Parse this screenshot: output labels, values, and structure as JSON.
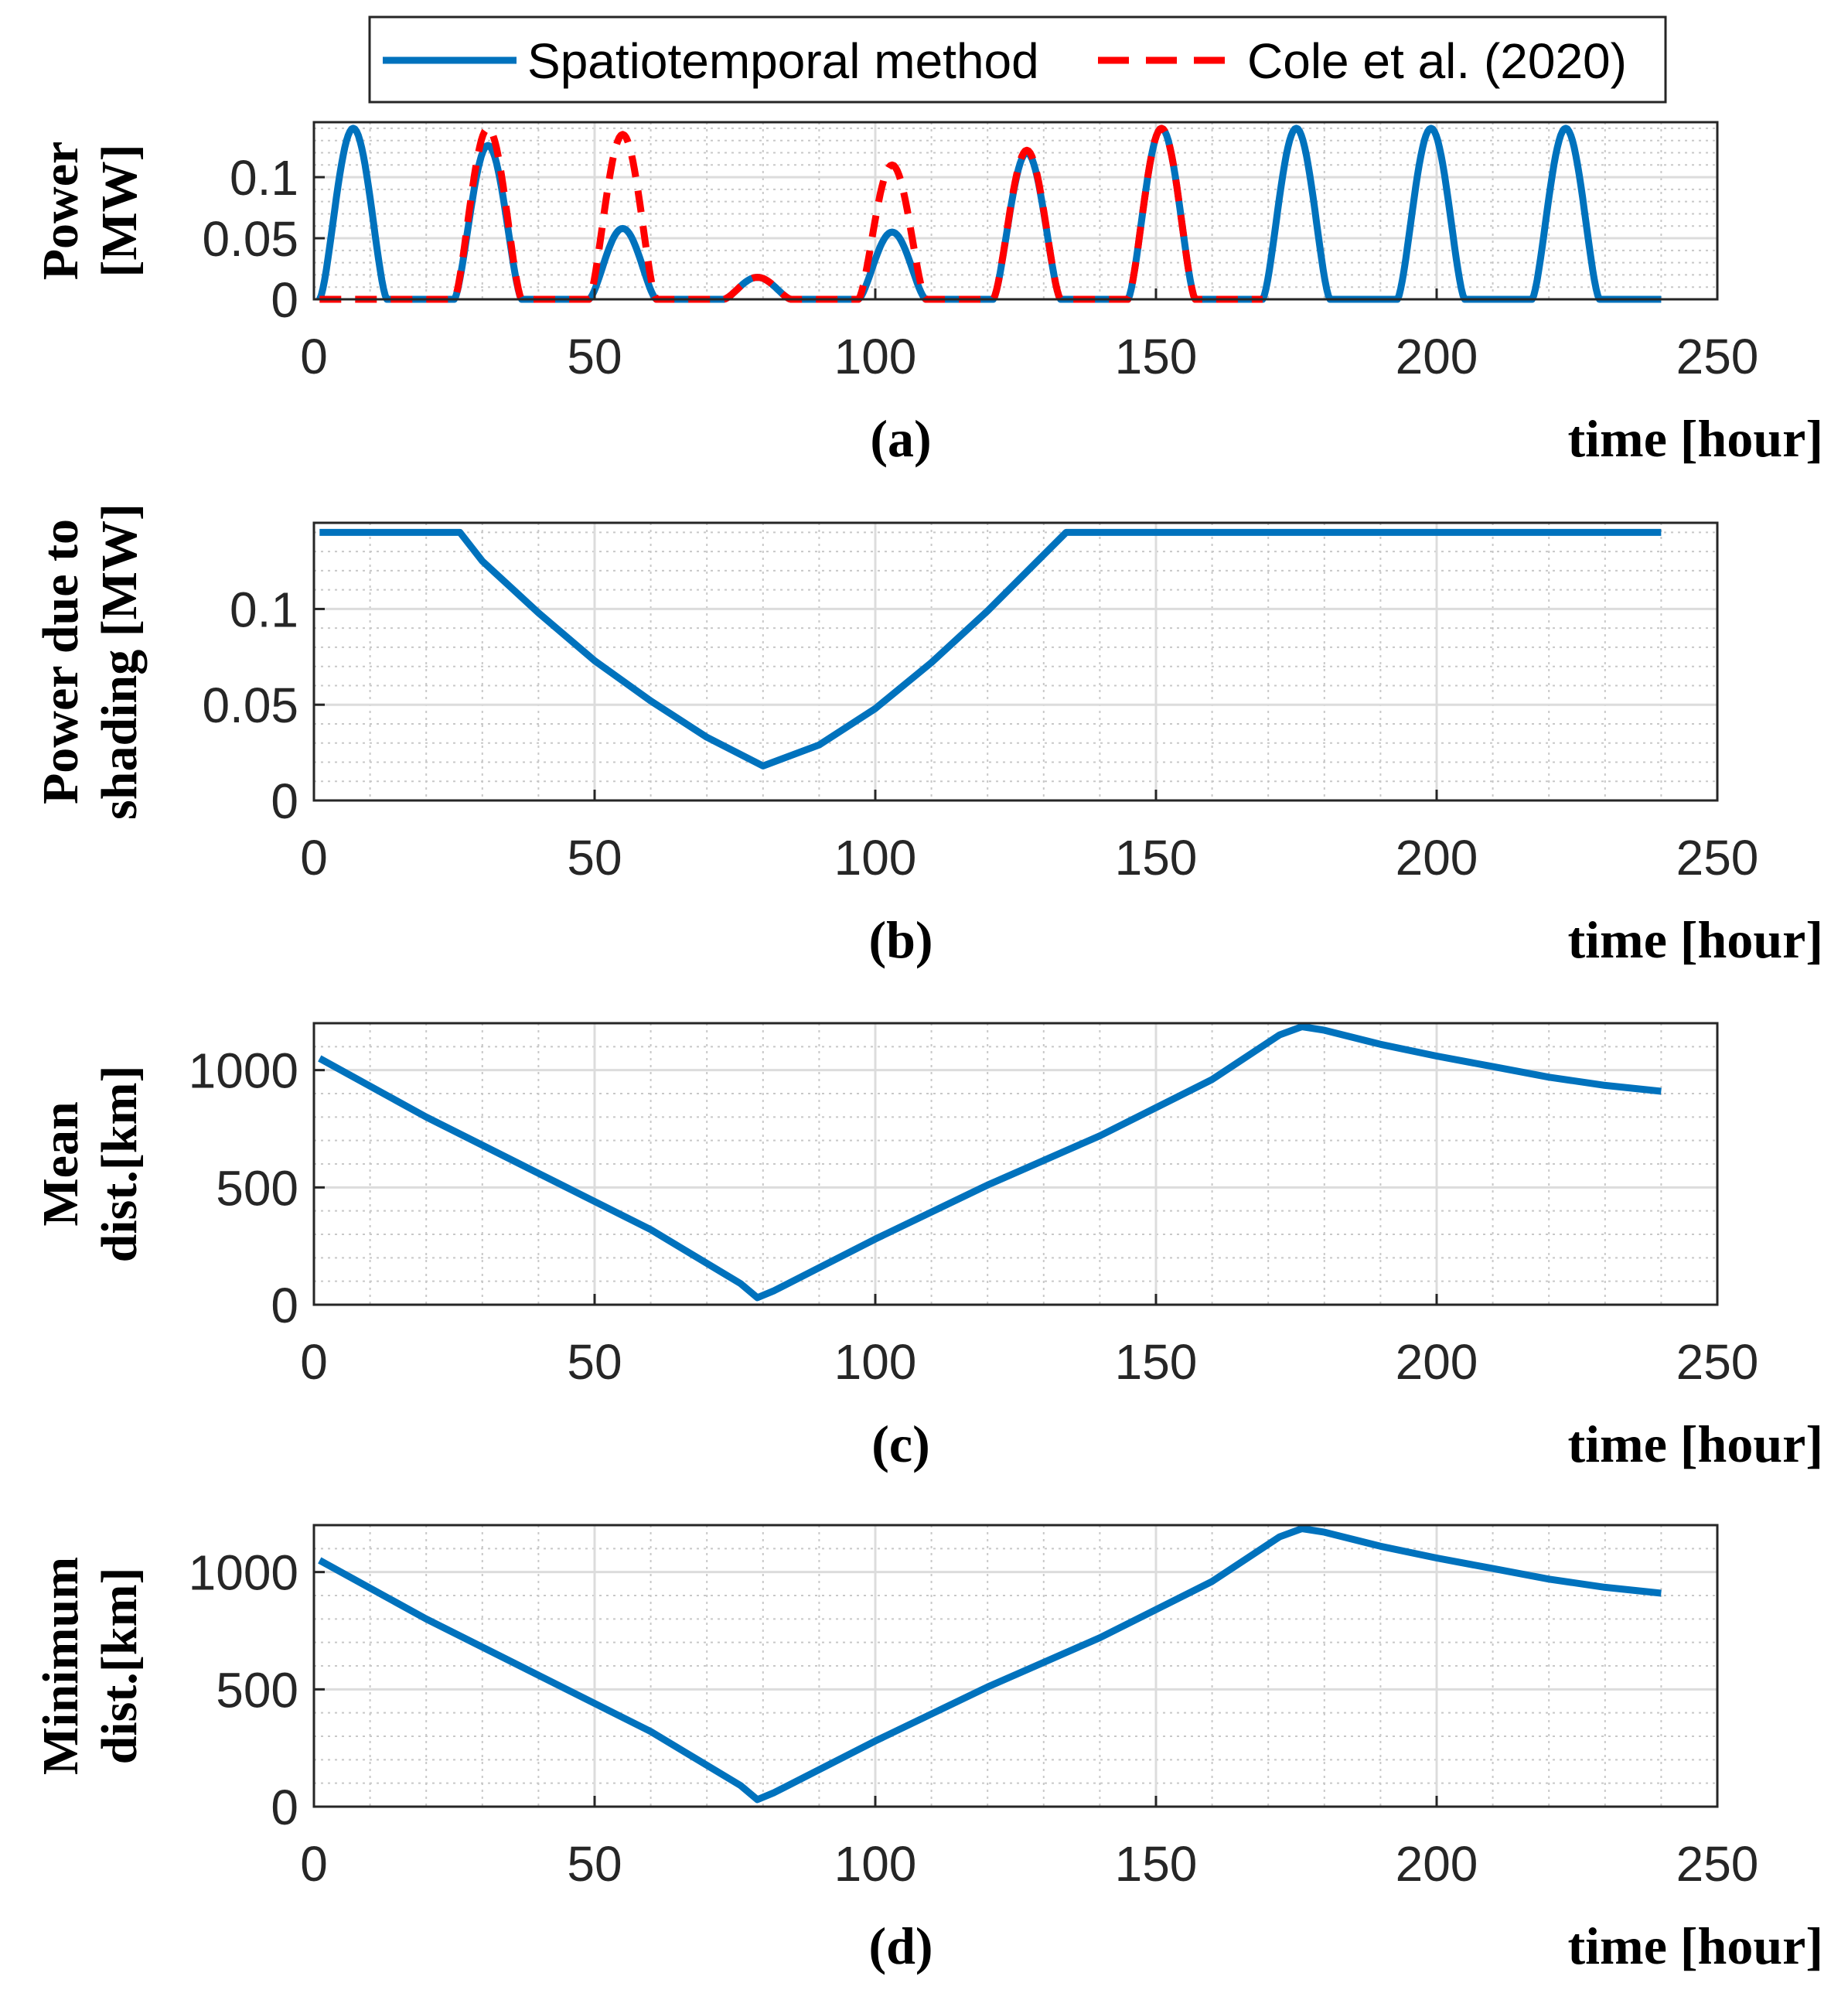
{
  "colors": {
    "spatio": "#0072BD",
    "cole": "#FF0000",
    "grid_major": "#dcdcdc",
    "grid_minor": "#c8c8c8",
    "axis": "#262626"
  },
  "legend": {
    "items": [
      {
        "label": "Spatiotemporal method",
        "style": "solid",
        "color": "#0072BD"
      },
      {
        "label": "Cole et al. (2020)",
        "style": "dashed",
        "color": "#FF0000"
      }
    ]
  },
  "chart_data": [
    {
      "id": "a",
      "type": "line",
      "caption": "(a)",
      "xlabel": "time [hour]",
      "ylabel_lines": [
        "Power",
        "[MW]"
      ],
      "xlim": [
        0,
        250
      ],
      "ylim": [
        0,
        0.145
      ],
      "xticks": [
        0,
        50,
        100,
        150,
        200,
        250
      ],
      "xtick_labels": [
        "0",
        "50",
        "100",
        "150",
        "200",
        "250"
      ],
      "yticks": [
        0,
        0.05,
        0.1
      ],
      "ytick_labels": [
        "0",
        "0.05",
        "0.1"
      ],
      "series": [
        {
          "name": "Spatiotemporal method",
          "style": "solid",
          "kind": "pulses",
          "x_start": 1,
          "x_end": 240,
          "period": 24,
          "width": 12,
          "first_start": 1,
          "peaks": [
            0.14,
            0.126,
            0.058,
            0.018,
            0.055,
            0.12,
            0.14,
            0.14,
            0.14,
            0.14
          ]
        },
        {
          "name": "Cole et al. (2020)",
          "style": "dashed",
          "kind": "pulses",
          "x_start": 1,
          "x_end": 170,
          "period": 24,
          "width": 12,
          "first_start": 1,
          "peaks": [
            null,
            0.14,
            0.135,
            0.018,
            0.11,
            0.122,
            0.14
          ]
        }
      ]
    },
    {
      "id": "b",
      "type": "line",
      "caption": "(b)",
      "xlabel": "time [hour]",
      "ylabel_lines": [
        "Power due to",
        "shading [MW]"
      ],
      "xlim": [
        0,
        250
      ],
      "ylim": [
        0,
        0.145
      ],
      "xticks": [
        0,
        50,
        100,
        150,
        200,
        250
      ],
      "xtick_labels": [
        "0",
        "50",
        "100",
        "150",
        "200",
        "250"
      ],
      "yticks": [
        0,
        0.05,
        0.1
      ],
      "ytick_labels": [
        "0",
        "0.05",
        "0.1"
      ],
      "series": [
        {
          "name": "Spatiotemporal method",
          "style": "solid",
          "x": [
            1,
            26,
            30,
            40,
            50,
            60,
            70,
            80,
            90,
            100,
            110,
            120,
            134,
            240
          ],
          "y": [
            0.14,
            0.14,
            0.125,
            0.098,
            0.073,
            0.052,
            0.033,
            0.018,
            0.029,
            0.048,
            0.072,
            0.099,
            0.14,
            0.14
          ]
        }
      ]
    },
    {
      "id": "c",
      "type": "line",
      "caption": "(c)",
      "xlabel": "time [hour]",
      "ylabel_lines": [
        "Mean",
        "dist.[km]"
      ],
      "xlim": [
        0,
        250
      ],
      "ylim": [
        0,
        1200
      ],
      "xticks": [
        0,
        50,
        100,
        150,
        200,
        250
      ],
      "xtick_labels": [
        "0",
        "50",
        "100",
        "150",
        "200",
        "250"
      ],
      "yticks": [
        0,
        500,
        1000
      ],
      "ytick_labels": [
        "0",
        "500",
        "1000"
      ],
      "series": [
        {
          "name": "Spatiotemporal method",
          "style": "solid",
          "x": [
            1,
            20,
            40,
            60,
            76,
            79,
            82,
            100,
            120,
            140,
            160,
            172,
            176,
            180,
            190,
            200,
            210,
            220,
            230,
            240
          ],
          "y": [
            1050,
            800,
            560,
            320,
            90,
            30,
            60,
            280,
            510,
            720,
            960,
            1150,
            1185,
            1170,
            1110,
            1060,
            1015,
            970,
            935,
            910
          ]
        }
      ]
    },
    {
      "id": "d",
      "type": "line",
      "caption": "(d)",
      "xlabel": "time [hour]",
      "ylabel_lines": [
        "Minimum",
        "dist.[km]"
      ],
      "xlim": [
        0,
        250
      ],
      "ylim": [
        0,
        1200
      ],
      "xticks": [
        0,
        50,
        100,
        150,
        200,
        250
      ],
      "xtick_labels": [
        "0",
        "50",
        "100",
        "150",
        "200",
        "250"
      ],
      "yticks": [
        0,
        500,
        1000
      ],
      "ytick_labels": [
        "0",
        "500",
        "1000"
      ],
      "series": [
        {
          "name": "Spatiotemporal method",
          "style": "solid",
          "x": [
            1,
            20,
            40,
            60,
            76,
            79,
            82,
            100,
            120,
            140,
            160,
            172,
            176,
            180,
            190,
            200,
            210,
            220,
            230,
            240
          ],
          "y": [
            1050,
            800,
            560,
            320,
            90,
            30,
            60,
            280,
            510,
            720,
            960,
            1150,
            1185,
            1170,
            1110,
            1060,
            1015,
            970,
            935,
            910
          ]
        }
      ]
    }
  ]
}
